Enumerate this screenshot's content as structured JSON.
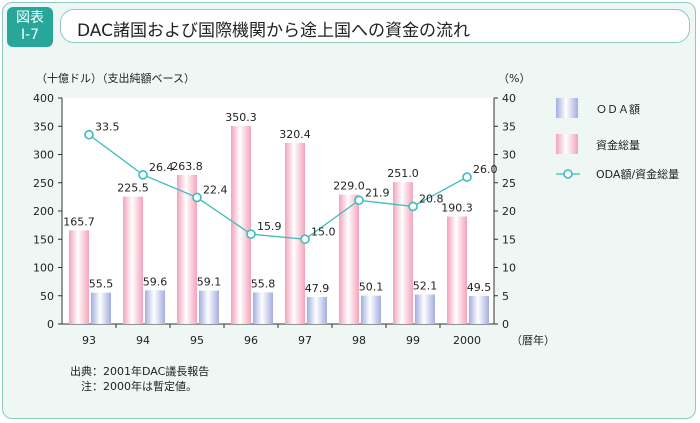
{
  "figure": {
    "badge_line1": "図表",
    "badge_line2": "Ⅰ-7",
    "title": "DAC諸国および国際機関から途上国への資金の流れ"
  },
  "notes": {
    "source": "出典：2001年DAC議長報告",
    "note": "　注：2000年は暫定値。"
  },
  "colors": {
    "total": "#f3a3ba",
    "oda": "#a3aee0",
    "line": "#3cbcbc"
  },
  "chart_data": {
    "type": "bar",
    "title": "",
    "categories": [
      "93",
      "94",
      "95",
      "96",
      "97",
      "98",
      "99",
      "2000"
    ],
    "xlabel": "（暦年）",
    "ylabel_left": "（十億ドル）（支出純額ベース）",
    "ylabel_right": "（%）",
    "ylim_left": [
      0,
      400
    ],
    "ylim_right": [
      0,
      40
    ],
    "yticks_left": [
      0,
      50,
      100,
      150,
      200,
      250,
      300,
      350,
      400
    ],
    "yticks_right": [
      0,
      5,
      10,
      15,
      20,
      25,
      30,
      35,
      40
    ],
    "series": [
      {
        "name": "資金総量",
        "type": "bar",
        "axis": "left",
        "values": [
          165.7,
          225.5,
          263.8,
          350.3,
          320.4,
          229.0,
          251.0,
          190.3
        ],
        "labels": [
          "165.7",
          "225.5",
          "263.8",
          "350.3",
          "320.4",
          "229.0",
          "251.0",
          "190.3"
        ]
      },
      {
        "name": "ＯＤＡ額",
        "type": "bar",
        "axis": "left",
        "values": [
          55.5,
          59.6,
          59.1,
          55.8,
          47.9,
          50.1,
          52.1,
          49.5
        ],
        "labels": [
          "55.5",
          "59.6",
          "59.1",
          "55.8",
          "47.9",
          "50.1",
          "52.1",
          "49.5"
        ]
      },
      {
        "name": "ODA額/資金総量",
        "type": "line",
        "axis": "right",
        "values": [
          33.5,
          26.4,
          22.4,
          15.9,
          15.0,
          21.9,
          20.8,
          26.0
        ],
        "labels": [
          "33.5",
          "26.4",
          "22.4",
          "15.9",
          "15.0",
          "21.9",
          "20.8",
          "26.0"
        ]
      }
    ],
    "legend": [
      "ＯＤＡ額",
      "資金総量",
      "ODA額/資金総量"
    ],
    "legend_position": "right",
    "grid": false
  }
}
